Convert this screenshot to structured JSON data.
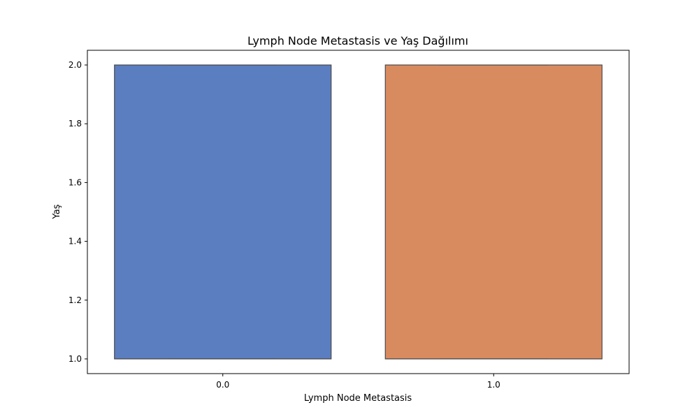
{
  "chart_data": {
    "type": "box",
    "title": "Lymph Node Metastasis ve Yaş Dağılımı",
    "xlabel": "Lymph Node Metastasis",
    "ylabel": "Yaş",
    "categories": [
      "0.0",
      "1.0"
    ],
    "boxes": [
      {
        "category": "0.0",
        "q1": 1.0,
        "median": 1.0,
        "q3": 2.0,
        "whisker_low": 1.0,
        "whisker_high": 2.0,
        "color": "#5b7ec0"
      },
      {
        "category": "1.0",
        "q1": 1.0,
        "median": 1.0,
        "q3": 2.0,
        "whisker_low": 1.0,
        "whisker_high": 2.0,
        "color": "#d98b60"
      }
    ],
    "ylim": [
      0.95,
      2.05
    ],
    "yticks": [
      1.0,
      1.2,
      1.4,
      1.6,
      1.8,
      2.0
    ],
    "ytick_labels": [
      "1.0",
      "1.2",
      "1.4",
      "1.6",
      "1.8",
      "2.0"
    ],
    "grid": false,
    "legend": "none",
    "colors": {
      "box_edge": "#4a4a4a",
      "axis": "#000000"
    }
  }
}
